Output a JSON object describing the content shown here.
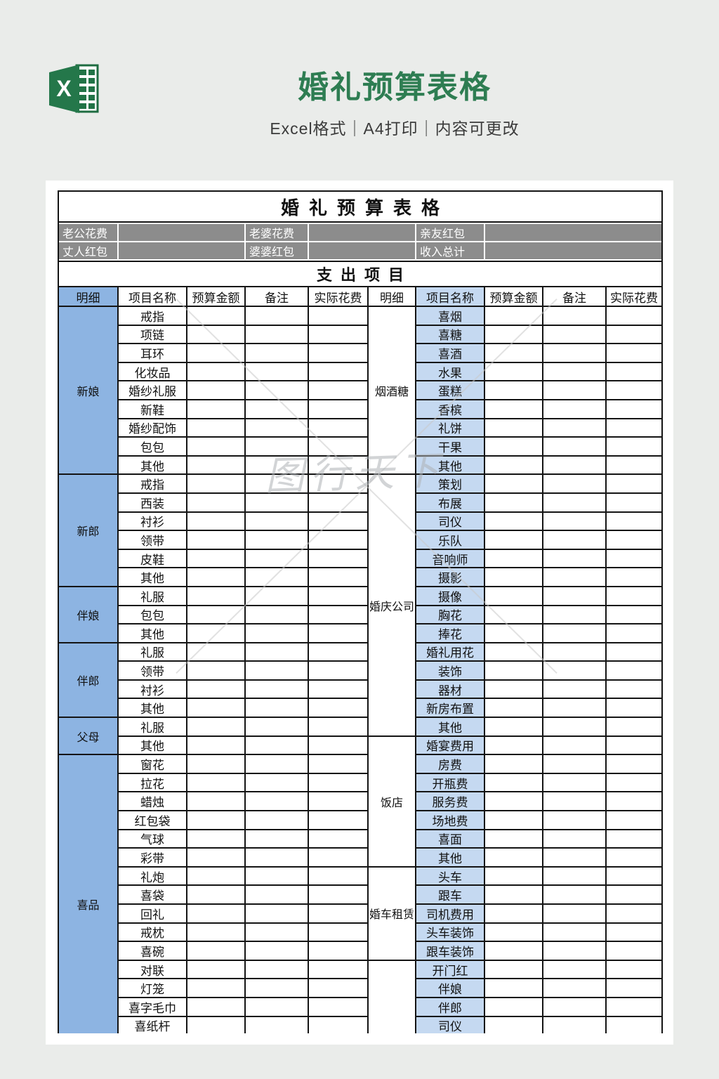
{
  "header": {
    "title": "婚礼预算表格",
    "subtitle": "Excel格式｜A4打印｜内容可更改",
    "logo_icon": "excel-icon",
    "logo_letter": "X"
  },
  "sheet": {
    "title": "婚礼预算表格",
    "section_title": "支出项目",
    "income_rows": [
      [
        {
          "label": "老公花费",
          "value": ""
        },
        {
          "label": "老婆花费",
          "value": ""
        },
        {
          "label": "亲友红包",
          "value": ""
        }
      ],
      [
        {
          "label": "丈人红包",
          "value": ""
        },
        {
          "label": "婆婆红包",
          "value": ""
        },
        {
          "label": "收入总计",
          "value": ""
        }
      ]
    ],
    "columns": [
      "明细",
      "项目名称",
      "预算金额",
      "备注",
      "实际花费"
    ],
    "left_categories": [
      {
        "name": "新娘",
        "items": [
          "戒指",
          "项链",
          "耳环",
          "化妆品",
          "婚纱礼服",
          "新鞋",
          "婚纱配饰",
          "包包",
          "其他"
        ]
      },
      {
        "name": "新郎",
        "items": [
          "戒指",
          "西装",
          "衬衫",
          "领带",
          "皮鞋",
          "其他"
        ]
      },
      {
        "name": "伴娘",
        "items": [
          "礼服",
          "包包",
          "其他"
        ]
      },
      {
        "name": "伴郎",
        "items": [
          "礼服",
          "领带",
          "衬衫",
          "其他"
        ]
      },
      {
        "name": "父母",
        "items": [
          "礼服",
          "其他"
        ]
      },
      {
        "name": "喜品",
        "items": [
          "窗花",
          "拉花",
          "蜡烛",
          "红包袋",
          "气球",
          "彩带",
          "礼炮",
          "喜袋",
          "回礼",
          "戒枕",
          "喜碗",
          "对联",
          "灯笼",
          "喜字毛巾",
          "喜纸杆",
          ""
        ]
      }
    ],
    "right_categories": [
      {
        "name": "烟酒糖",
        "items": [
          "喜烟",
          "喜糖",
          "喜酒",
          "水果",
          "蛋糕",
          "香槟",
          "礼饼",
          "干果",
          "其他"
        ]
      },
      {
        "name": "婚庆公司",
        "items": [
          "策划",
          "布展",
          "司仪",
          "乐队",
          "音响师",
          "摄影",
          "摄像",
          "胸花",
          "捧花",
          "婚礼用花",
          "装饰",
          "器材",
          "新房布置",
          "其他"
        ]
      },
      {
        "name": "饭店",
        "items": [
          "婚宴费用",
          "房费",
          "开瓶费",
          "服务费",
          "场地费",
          "喜面",
          "其他"
        ]
      },
      {
        "name": "婚车租赁",
        "items": [
          "头车",
          "跟车",
          "司机费用",
          "头车装饰",
          "跟车装饰"
        ]
      },
      {
        "name": "",
        "items": [
          "开门红",
          "伴娘",
          "伴郎",
          "司仪",
          ""
        ]
      }
    ]
  },
  "watermark": {
    "text": "图行天下"
  },
  "colors": {
    "excel_green": "#217346",
    "title_green": "#2E7D52",
    "category_blue": "#8DB4E2",
    "item_blue": "#C5D9F1",
    "income_gray": "#8C8C8C",
    "grid_black": "#141414"
  }
}
